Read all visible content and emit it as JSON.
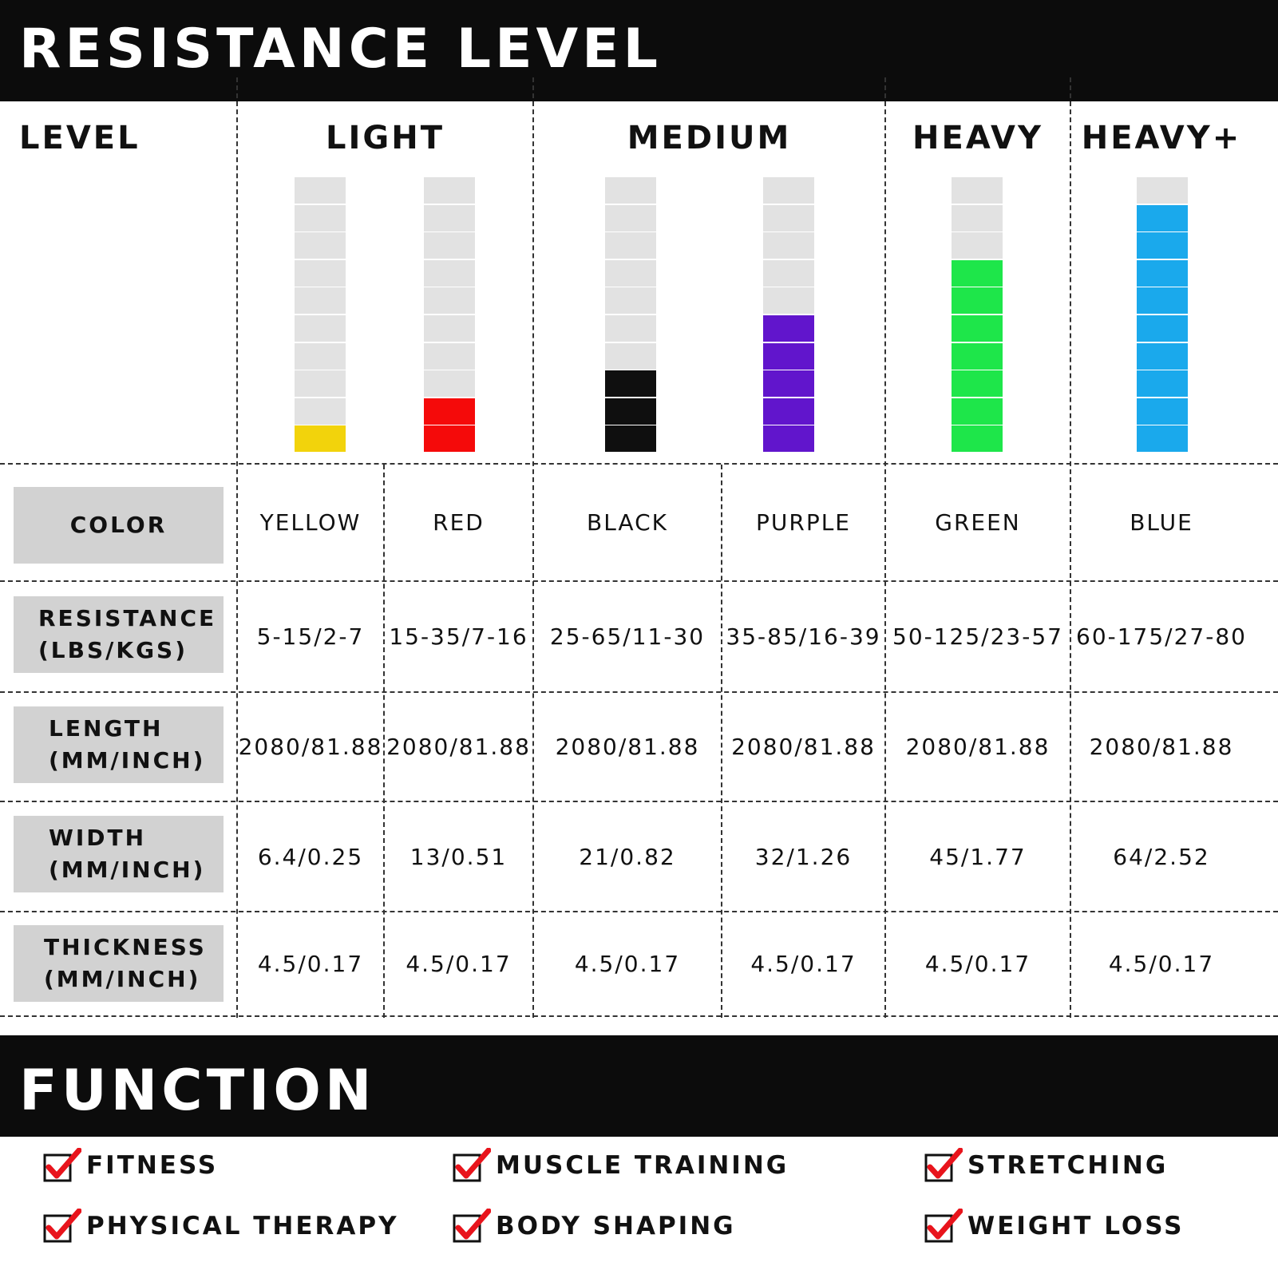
{
  "resistance_title": "RESISTANCE LEVEL",
  "function_title": "FUNCTION",
  "level_label": "LEVEL",
  "groups": [
    "LIGHT",
    "MEDIUM",
    "HEAVY",
    "HEAVY+"
  ],
  "bands": [
    {
      "color_name": "YELLOW",
      "color": "#f2d30c",
      "level": 1
    },
    {
      "color_name": "RED",
      "color": "#f50a0a",
      "level": 2
    },
    {
      "color_name": "BLACK",
      "color": "#0f0f0f",
      "level": 3
    },
    {
      "color_name": "PURPLE",
      "color": "#6115cc",
      "level": 5
    },
    {
      "color_name": "GREEN",
      "color": "#1ee64a",
      "level": 7
    },
    {
      "color_name": "BLUE",
      "color": "#1aa9ec",
      "level": 9
    }
  ],
  "bar_total_segments": 10,
  "rows": [
    {
      "label": "COLOR",
      "values": [
        "YELLOW",
        "RED",
        "BLACK",
        "PURPLE",
        "GREEN",
        "BLUE"
      ]
    },
    {
      "label": "RESISTANCE\n(LBS/KGS)",
      "values": [
        "5-15/2-7",
        "15-35/7-16",
        "25-65/11-30",
        "35-85/16-39",
        "50-125/23-57",
        "60-175/27-80"
      ]
    },
    {
      "label": "LENGTH\n(MM/INCH)",
      "values": [
        "2080/81.88",
        "2080/81.88",
        "2080/81.88",
        "2080/81.88",
        "2080/81.88",
        "2080/81.88"
      ]
    },
    {
      "label": "WIDTH\n(MM/INCH)",
      "values": [
        "6.4/0.25",
        "13/0.51",
        "21/0.82",
        "32/1.26",
        "45/1.77",
        "64/2.52"
      ]
    },
    {
      "label": "THICKNESS\n(MM/INCH)",
      "values": [
        "4.5/0.17",
        "4.5/0.17",
        "4.5/0.17",
        "4.5/0.17",
        "4.5/0.17",
        "4.5/0.17"
      ]
    }
  ],
  "functions": [
    "FITNESS",
    "MUSCLE TRAINING",
    "STRETCHING",
    "PHYSICAL THERAPY",
    "BODY SHAPING",
    "WEIGHT LOSS"
  ],
  "colors": {
    "banner": "#0c0c0c",
    "label_bg": "#d2d2d2",
    "empty_segment": "#e2e2e2",
    "check": "#e8141c"
  }
}
